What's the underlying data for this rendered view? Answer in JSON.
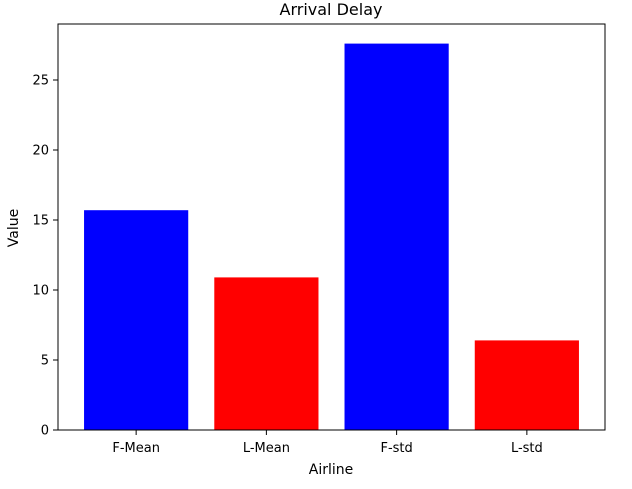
{
  "chart_data": {
    "type": "bar",
    "title": "Arrival Delay",
    "xlabel": "Airline",
    "ylabel": "Value",
    "categories": [
      "F-Mean",
      "L-Mean",
      "F-std",
      "L-std"
    ],
    "values": [
      15.7,
      10.9,
      27.6,
      6.4
    ],
    "bar_colors": [
      "#0000ff",
      "#ff0000",
      "#0000ff",
      "#ff0000"
    ],
    "ylim": [
      0,
      29.0
    ],
    "yticks": [
      0,
      5,
      10,
      15,
      20,
      25
    ],
    "grid": false
  }
}
